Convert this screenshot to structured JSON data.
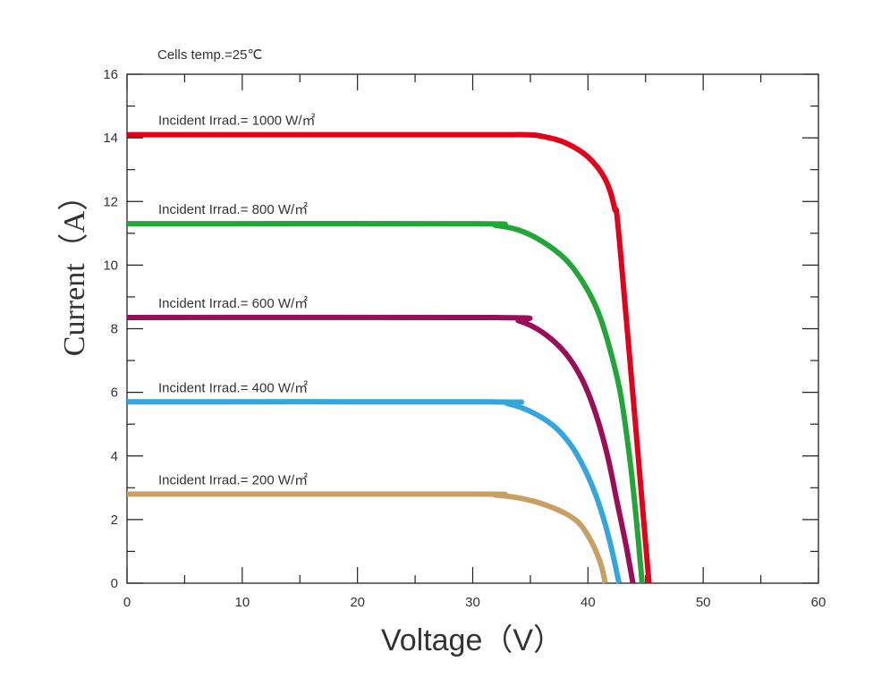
{
  "chart_data": {
    "type": "line",
    "title": "",
    "note": "Cells temp.=25℃",
    "xlabel": "Voltage（V）",
    "ylabel": "Current（A）",
    "xlim": [
      0,
      60
    ],
    "ylim": [
      0,
      16
    ],
    "x_ticks": [
      "0",
      "10",
      "20",
      "30",
      "40",
      "50",
      "60"
    ],
    "y_ticks": [
      "0",
      "2",
      "4",
      "6",
      "8",
      "10",
      "12",
      "14",
      "16"
    ],
    "grid": false,
    "series": [
      {
        "name": "Incident Irrad.= 1000 W/㎡",
        "color": "#e3001b",
        "points": [
          [
            0,
            14.1
          ],
          [
            30,
            14.1
          ],
          [
            34.5,
            14.1
          ],
          [
            36,
            14.05
          ],
          [
            38,
            13.85
          ],
          [
            40,
            13.4
          ],
          [
            41.5,
            12.7
          ],
          [
            42.3,
            11.8
          ],
          [
            42.8,
            10.5
          ],
          [
            45.3,
            0
          ]
        ]
      },
      {
        "name": "Incident Irrad.= 800 W/㎡",
        "color": "#23a639",
        "points": [
          [
            0,
            11.3
          ],
          [
            30,
            11.3
          ],
          [
            32,
            11.25
          ],
          [
            34,
            11.1
          ],
          [
            36,
            10.75
          ],
          [
            38,
            10.2
          ],
          [
            39.5,
            9.5
          ],
          [
            40.8,
            8.6
          ],
          [
            41.8,
            7.5
          ],
          [
            42.8,
            6.0
          ],
          [
            43.6,
            4.0
          ],
          [
            44.2,
            2.0
          ],
          [
            44.7,
            0
          ]
        ]
      },
      {
        "name": "Incident Irrad.= 600 W/㎡",
        "color": "#9b0d58",
        "points": [
          [
            0,
            8.35
          ],
          [
            32,
            8.35
          ],
          [
            34,
            8.25
          ],
          [
            36,
            7.9
          ],
          [
            38,
            7.25
          ],
          [
            39.5,
            6.4
          ],
          [
            40.7,
            5.3
          ],
          [
            41.7,
            4.0
          ],
          [
            42.5,
            2.6
          ],
          [
            43.3,
            1.2
          ],
          [
            43.9,
            0
          ]
        ]
      },
      {
        "name": "Incident Irrad.= 400 W/㎡",
        "color": "#34a6de",
        "points": [
          [
            0,
            5.7
          ],
          [
            31.5,
            5.7
          ],
          [
            33,
            5.65
          ],
          [
            35,
            5.4
          ],
          [
            37,
            4.95
          ],
          [
            38.5,
            4.35
          ],
          [
            39.7,
            3.6
          ],
          [
            40.7,
            2.75
          ],
          [
            41.5,
            1.85
          ],
          [
            42.1,
            1.0
          ],
          [
            42.7,
            0
          ]
        ]
      },
      {
        "name": "Incident Irrad.= 200 W/㎡",
        "color": "#c9a063",
        "points": [
          [
            0,
            2.8
          ],
          [
            30,
            2.8
          ],
          [
            32,
            2.77
          ],
          [
            34,
            2.68
          ],
          [
            36,
            2.5
          ],
          [
            38,
            2.2
          ],
          [
            39.2,
            1.9
          ],
          [
            40.0,
            1.5
          ],
          [
            40.7,
            1.0
          ],
          [
            41.2,
            0.5
          ],
          [
            41.5,
            0
          ]
        ]
      }
    ]
  }
}
